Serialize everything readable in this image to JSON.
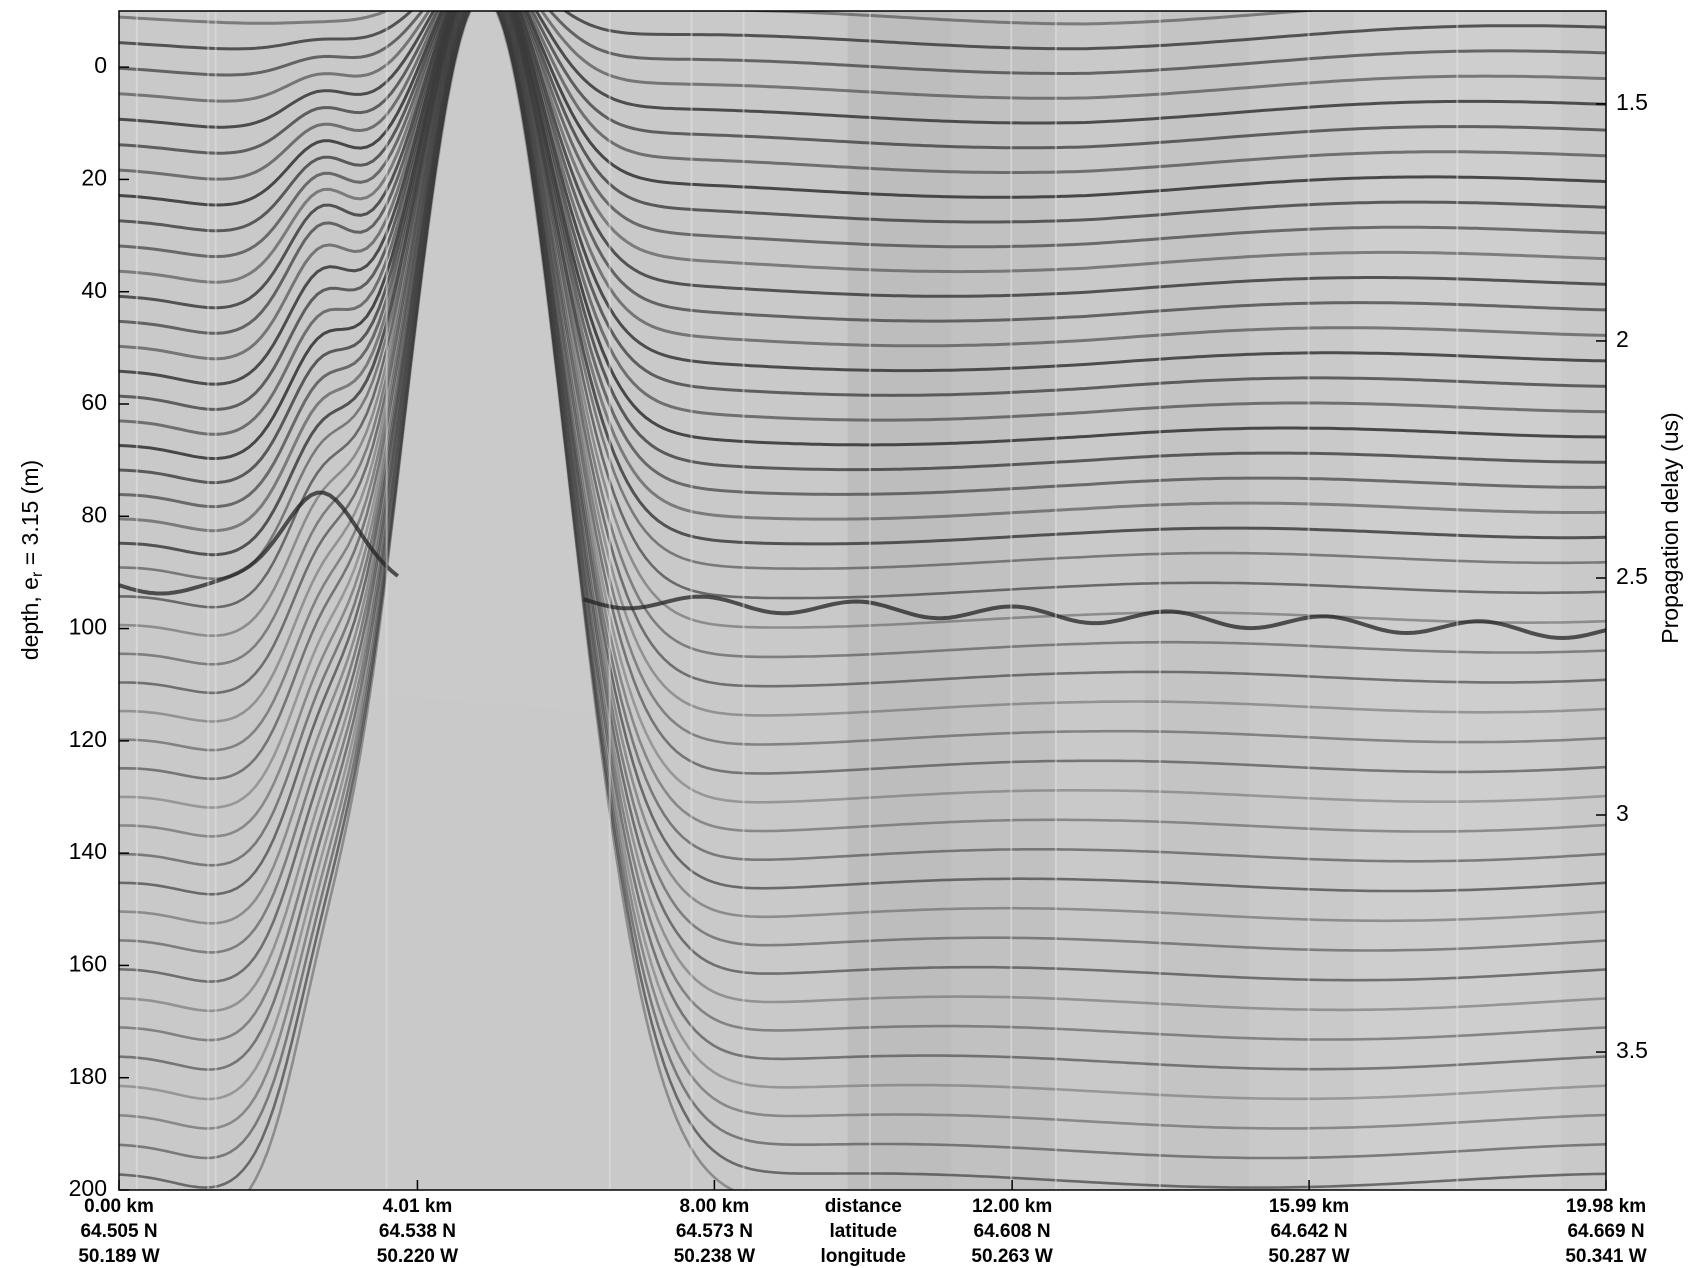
{
  "chart_data": {
    "type": "echogram",
    "ylabel": {
      "text": "depth, e",
      "subscript": "r",
      "suffix": " = 3.15 (m)"
    },
    "y2label": "Propagation delay (us)",
    "ylim": [
      -10,
      200
    ],
    "y_inverted": true,
    "yticks": [
      0,
      20,
      40,
      60,
      80,
      100,
      120,
      140,
      160,
      180,
      200
    ],
    "y2lim": [
      1.304,
      3.791
    ],
    "y2ticks": [
      1.5,
      2,
      2.5,
      3,
      3.5
    ],
    "xlim": [
      0,
      19.98
    ],
    "xticks": [
      {
        "value": 0,
        "label": "0.00 km"
      },
      {
        "value": 4.01,
        "label": "4.01 km"
      },
      {
        "value": 8,
        "label": "8.00 km"
      },
      {
        "value": 12,
        "label": "12.00 km"
      },
      {
        "value": 15.99,
        "label": "15.99 km"
      },
      {
        "value": 19.98,
        "label": "19.98 km"
      }
    ],
    "xtick_latitudes": [
      "64.505 N",
      "64.538 N",
      "64.573 N",
      "64.608 N",
      "64.642 N",
      "64.669 N"
    ],
    "xtick_longitudes": [
      "50.189 W",
      "50.220 W",
      "50.238 W",
      "50.263 W",
      "50.287 W",
      "50.341 W"
    ],
    "xtick_row_titles": [
      "distance",
      "latitude",
      "longitude"
    ]
  }
}
